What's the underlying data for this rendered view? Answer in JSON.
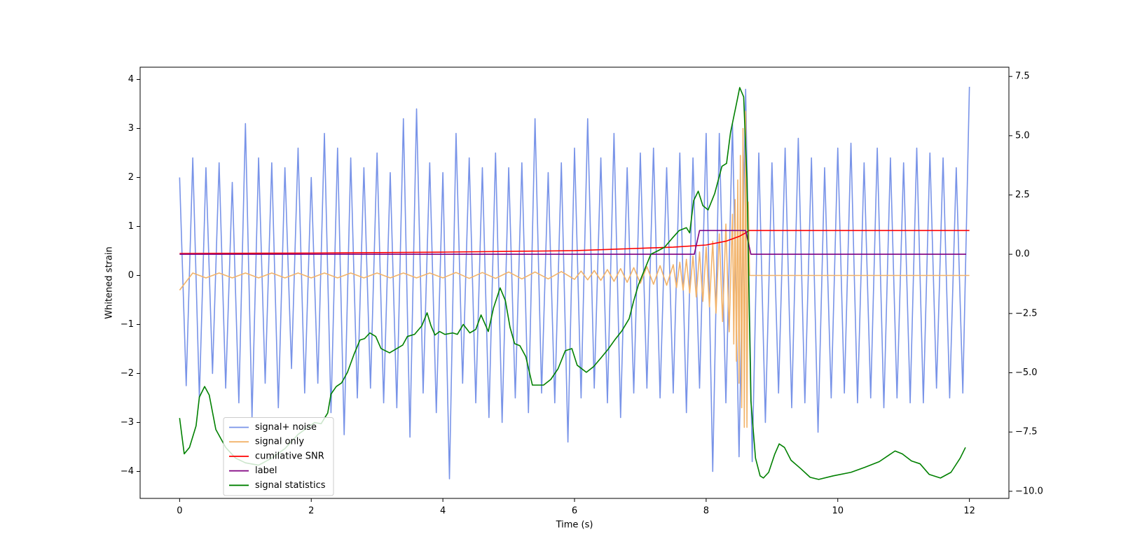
{
  "chart_data": {
    "type": "line",
    "xlabel": "Time (s)",
    "ylabel": "Whitened strain",
    "xlim": [
      -0.6,
      12.6
    ],
    "xticks": [
      0,
      2,
      4,
      6,
      8,
      10,
      12
    ],
    "ylim": [
      -4.55,
      4.25
    ],
    "yticks": [
      {
        "value": -4,
        "label": "−4"
      },
      {
        "value": -3,
        "label": "−3"
      },
      {
        "value": -2,
        "label": "−2"
      },
      {
        "value": -1,
        "label": "−1"
      },
      0,
      1,
      2,
      3,
      4
    ],
    "y2lim": [
      -10.3,
      7.89
    ],
    "y2ticks": [
      {
        "value": -10,
        "label": "−10.0"
      },
      {
        "value": -7.5,
        "label": "−7.5"
      },
      {
        "value": -5,
        "label": "−5.0"
      },
      {
        "value": -2.5,
        "label": "−2.5"
      },
      {
        "value": 0,
        "label": "0.0"
      },
      {
        "value": 2.5,
        "label": "2.5"
      },
      {
        "value": 5,
        "label": "5.0"
      },
      {
        "value": 7.5,
        "label": "7.5"
      }
    ],
    "legend": "lower left",
    "series": [
      {
        "name": "signal+ noise",
        "color": "#7893e8",
        "x": [
          0,
          0.1,
          0.2,
          0.3,
          0.4,
          0.5,
          0.6,
          0.7,
          0.8,
          0.9,
          1,
          1.1,
          1.2,
          1.3,
          1.4,
          1.5,
          1.6,
          1.7,
          1.8,
          1.9,
          2,
          2.1,
          2.2,
          2.3,
          2.4,
          2.5,
          2.6,
          2.7,
          2.8,
          2.9,
          3,
          3.1,
          3.2,
          3.3,
          3.4,
          3.5,
          3.6,
          3.7,
          3.8,
          3.9,
          4,
          4.1,
          4.2,
          4.3,
          4.4,
          4.5,
          4.6,
          4.7,
          4.8,
          4.9,
          5,
          5.1,
          5.2,
          5.3,
          5.4,
          5.5,
          5.6,
          5.7,
          5.8,
          5.9,
          6,
          6.1,
          6.2,
          6.3,
          6.4,
          6.5,
          6.6,
          6.7,
          6.8,
          6.9,
          7,
          7.1,
          7.2,
          7.3,
          7.4,
          7.5,
          7.6,
          7.7,
          7.8,
          7.9,
          8,
          8.1,
          8.2,
          8.3,
          8.4,
          8.5,
          8.6,
          8.7,
          8.8,
          8.9,
          9,
          9.1,
          9.2,
          9.3,
          9.4,
          9.5,
          9.6,
          9.7,
          9.8,
          9.9,
          10,
          10.1,
          10.2,
          10.3,
          10.4,
          10.5,
          10.6,
          10.7,
          10.8,
          10.9,
          11,
          11.1,
          11.2,
          11.3,
          11.4,
          11.5,
          11.6,
          11.7,
          11.8,
          11.9,
          12
        ],
        "values": [
          2.0,
          -2.25,
          2.4,
          -2.5,
          2.2,
          -2.0,
          2.3,
          -2.3,
          1.9,
          -2.6,
          3.1,
          -2.9,
          2.4,
          -2.2,
          2.3,
          -2.7,
          2.2,
          -1.9,
          2.6,
          -2.4,
          2.0,
          -2.2,
          2.9,
          -2.8,
          2.6,
          -3.25,
          2.4,
          -2.5,
          2.2,
          -2.3,
          2.5,
          -2.6,
          2.1,
          -2.7,
          3.2,
          -3.3,
          3.4,
          -2.4,
          2.3,
          -2.8,
          2.1,
          -4.15,
          2.9,
          -2.2,
          2.4,
          -2.6,
          2.2,
          -2.9,
          2.5,
          -3.0,
          2.2,
          -2.5,
          2.3,
          -2.8,
          3.2,
          -2.4,
          2.1,
          -2.6,
          2.3,
          -3.4,
          2.6,
          -2.5,
          3.2,
          -2.3,
          2.4,
          -2.6,
          2.9,
          -2.9,
          2.2,
          -2.4,
          2.5,
          -2.3,
          2.6,
          -2.5,
          2.2,
          -2.4,
          2.5,
          -2.8,
          2.4,
          -2.3,
          2.9,
          -4.0,
          2.9,
          -2.6,
          3.1,
          -3.7,
          3.8,
          -3.8,
          2.5,
          -3.0,
          2.3,
          -2.4,
          2.6,
          -2.7,
          2.8,
          -2.6,
          2.4,
          -3.2,
          2.2,
          -2.5,
          2.6,
          -2.4,
          2.7,
          -2.6,
          2.3,
          -2.5,
          2.6,
          -2.7,
          2.4,
          -2.5,
          2.3,
          -2.6,
          2.6,
          -2.6,
          2.5,
          -2.3,
          2.4,
          -2.5,
          2.2,
          -2.4,
          3.85
        ]
      },
      {
        "name": "signal only",
        "color": "#f2b36a",
        "x": [
          0,
          0.2,
          0.4,
          0.6,
          0.8,
          1,
          1.2,
          1.4,
          1.6,
          1.8,
          2,
          2.2,
          2.4,
          2.6,
          2.8,
          3,
          3.2,
          3.4,
          3.6,
          3.8,
          4,
          4.2,
          4.4,
          4.6,
          4.8,
          5,
          5.2,
          5.4,
          5.6,
          5.8,
          6,
          6.1,
          6.2,
          6.3,
          6.4,
          6.5,
          6.6,
          6.7,
          6.8,
          6.9,
          7,
          7.1,
          7.2,
          7.3,
          7.4,
          7.5,
          7.55,
          7.6,
          7.65,
          7.7,
          7.75,
          7.8,
          7.85,
          7.9,
          7.95,
          8,
          8.05,
          8.1,
          8.15,
          8.2,
          8.25,
          8.3,
          8.35,
          8.4,
          8.42,
          8.44,
          8.46,
          8.48,
          8.5,
          8.52,
          8.54,
          8.56,
          8.58,
          8.6,
          8.62,
          8.64,
          8.66,
          12
        ],
        "values": [
          -0.3,
          0.05,
          -0.05,
          0.05,
          -0.05,
          0.05,
          -0.05,
          0.05,
          -0.05,
          0.05,
          -0.05,
          0.05,
          -0.05,
          0.05,
          -0.05,
          0.05,
          -0.05,
          0.05,
          -0.05,
          0.05,
          -0.05,
          0.06,
          -0.06,
          0.06,
          -0.06,
          0.07,
          -0.07,
          0.07,
          -0.07,
          0.08,
          -0.08,
          0.09,
          -0.09,
          0.1,
          -0.1,
          0.12,
          -0.12,
          0.14,
          -0.14,
          0.16,
          -0.16,
          0.18,
          -0.18,
          0.2,
          -0.2,
          0.22,
          -0.25,
          0.27,
          -0.3,
          0.33,
          -0.36,
          0.4,
          -0.44,
          0.48,
          -0.53,
          0.58,
          -0.64,
          0.7,
          -0.77,
          0.85,
          -0.94,
          1.05,
          -1.15,
          1.25,
          -1.4,
          1.55,
          -1.75,
          1.95,
          -2.2,
          2.45,
          -2.7,
          3.0,
          -3.1,
          3.35,
          -3.1,
          1.5,
          0,
          0
        ]
      },
      {
        "name": "cumilative SNR",
        "color": "#ff0000",
        "axis": "y2",
        "x": [
          0,
          2,
          4,
          6,
          7,
          7.5,
          8,
          8.3,
          8.5,
          8.6,
          8.65,
          12
        ],
        "values": [
          0.03,
          0.05,
          0.09,
          0.15,
          0.25,
          0.3,
          0.39,
          0.55,
          0.75,
          0.9,
          1.0,
          1.0
        ]
      },
      {
        "name": "label",
        "color": "#800080",
        "axis": "y2",
        "x": [
          0,
          7.82,
          7.9,
          8.6,
          8.68,
          11.95
        ],
        "values": [
          0,
          0,
          1,
          1,
          0,
          0
        ]
      },
      {
        "name": "signal statistics",
        "color": "#008000",
        "axis": "y2",
        "x": [
          0,
          0.07,
          0.15,
          0.25,
          0.3,
          0.38,
          0.45,
          0.55,
          0.7,
          0.85,
          1.0,
          1.2,
          1.4,
          1.6,
          1.8,
          2.05,
          2.15,
          2.25,
          2.3,
          2.38,
          2.46,
          2.55,
          2.65,
          2.74,
          2.81,
          2.89,
          2.98,
          3.06,
          3.19,
          3.3,
          3.39,
          3.46,
          3.57,
          3.68,
          3.76,
          3.82,
          3.88,
          3.95,
          4.03,
          4.15,
          4.22,
          4.31,
          4.41,
          4.5,
          4.58,
          4.69,
          4.77,
          4.87,
          4.95,
          5.02,
          5.09,
          5.17,
          5.26,
          5.36,
          5.53,
          5.64,
          5.75,
          5.86,
          5.96,
          6.04,
          6.18,
          6.29,
          6.4,
          6.51,
          6.61,
          6.72,
          6.83,
          6.9,
          6.97,
          7.05,
          7.16,
          7.27,
          7.37,
          7.48,
          7.59,
          7.7,
          7.75,
          7.81,
          7.88,
          7.95,
          8.03,
          8.13,
          8.24,
          8.31,
          8.37,
          8.46,
          8.51,
          8.57,
          8.62,
          8.68,
          8.75,
          8.82,
          8.87,
          8.95,
          9.04,
          9.11,
          9.19,
          9.29,
          9.44,
          9.58,
          9.71,
          9.93,
          10.2,
          10.41,
          10.63,
          10.87,
          10.98,
          11.12,
          11.25,
          11.39,
          11.56,
          11.72,
          11.86,
          11.94
        ],
        "values": [
          -6.91,
          -8.42,
          -8.15,
          -7.24,
          -6.03,
          -5.58,
          -5.94,
          -7.39,
          -8.15,
          -8.6,
          -8.8,
          -8.9,
          -8.6,
          -8.2,
          -7.6,
          -7.1,
          -7.15,
          -6.7,
          -5.9,
          -5.58,
          -5.43,
          -4.98,
          -4.22,
          -3.62,
          -3.56,
          -3.32,
          -3.47,
          -3.98,
          -4.16,
          -3.98,
          -3.83,
          -3.47,
          -3.38,
          -3.02,
          -2.47,
          -3.02,
          -3.41,
          -3.26,
          -3.38,
          -3.32,
          -3.38,
          -2.96,
          -3.32,
          -3.17,
          -2.56,
          -3.26,
          -2.26,
          -1.42,
          -1.96,
          -3.08,
          -3.77,
          -3.86,
          -4.32,
          -5.52,
          -5.52,
          -5.28,
          -4.83,
          -4.07,
          -3.98,
          -4.68,
          -4.98,
          -4.74,
          -4.38,
          -4.01,
          -3.62,
          -3.23,
          -2.72,
          -1.96,
          -1.3,
          -0.75,
          0,
          0.15,
          0.3,
          0.66,
          1.0,
          1.12,
          0.9,
          2.26,
          2.66,
          2.05,
          1.87,
          2.56,
          3.71,
          3.83,
          5.13,
          6.34,
          7.03,
          6.64,
          3.17,
          -6.19,
          -8.6,
          -9.35,
          -9.44,
          -9.2,
          -8.45,
          -8.0,
          -8.15,
          -8.69,
          -9.05,
          -9.41,
          -9.5,
          -9.35,
          -9.2,
          -8.99,
          -8.75,
          -8.3,
          -8.42,
          -8.72,
          -8.84,
          -9.29,
          -9.44,
          -9.2,
          -8.6,
          -8.15
        ]
      }
    ]
  }
}
